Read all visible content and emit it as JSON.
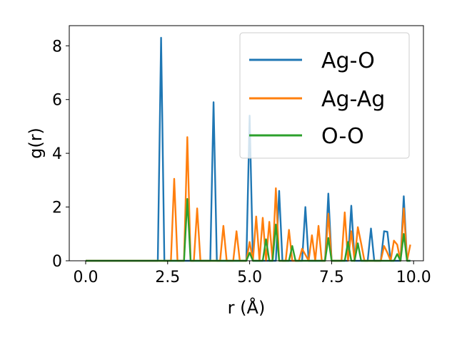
{
  "chart_data": {
    "type": "line",
    "xlabel": "r (Å)",
    "ylabel": "g(r)",
    "xlim": [
      -0.5,
      10.3
    ],
    "ylim": [
      0,
      8.75
    ],
    "xticks": [
      0.0,
      2.5,
      5.0,
      7.5,
      10.0
    ],
    "xtick_labels": [
      "0.0",
      "2.5",
      "5.0",
      "7.5",
      "10.0"
    ],
    "yticks": [
      0,
      2,
      4,
      6,
      8
    ],
    "ytick_labels": [
      "0",
      "2",
      "4",
      "6",
      "8"
    ],
    "grid": false,
    "legend_placement": "top-right",
    "series": [
      {
        "name": "Ag-O",
        "color": "#1f77b4",
        "x": [
          0.0,
          2.2,
          2.3,
          2.4,
          3.8,
          3.9,
          4.0,
          4.9,
          5.0,
          5.1,
          5.8,
          5.9,
          6.0,
          6.6,
          6.7,
          6.8,
          7.3,
          7.4,
          7.5,
          8.0,
          8.1,
          8.2,
          8.6,
          8.7,
          8.8,
          9.0,
          9.1,
          9.2,
          9.3,
          9.6,
          9.7,
          9.8,
          9.9
        ],
        "y": [
          0.0,
          0.0,
          8.3,
          0.0,
          0.0,
          5.9,
          0.0,
          0.0,
          5.4,
          0.0,
          0.0,
          2.6,
          0.0,
          0.0,
          2.0,
          0.0,
          0.0,
          2.5,
          0.0,
          0.0,
          2.05,
          0.0,
          0.0,
          1.2,
          0.0,
          0.0,
          1.1,
          1.08,
          0.0,
          0.0,
          2.4,
          0.0,
          0.0
        ]
      },
      {
        "name": "Ag-Ag",
        "color": "#ff7f0e",
        "x": [
          0.0,
          2.6,
          2.7,
          2.8,
          3.0,
          3.1,
          3.2,
          3.3,
          3.4,
          3.5,
          4.1,
          4.2,
          4.3,
          4.5,
          4.6,
          4.7,
          4.9,
          5.0,
          5.1,
          5.2,
          5.3,
          5.4,
          5.5,
          5.6,
          5.7,
          5.8,
          5.9,
          6.1,
          6.2,
          6.3,
          6.5,
          6.6,
          6.8,
          6.9,
          7.0,
          7.1,
          7.2,
          7.3,
          7.4,
          7.5,
          7.8,
          7.9,
          8.0,
          8.1,
          8.2,
          8.3,
          8.4,
          8.5,
          8.9,
          9.0,
          9.1,
          9.2,
          9.3,
          9.4,
          9.5,
          9.6,
          9.7,
          9.8,
          9.9
        ],
        "y": [
          0.0,
          0.0,
          3.05,
          0.0,
          0.0,
          4.6,
          0.0,
          0.0,
          1.95,
          0.0,
          0.0,
          1.3,
          0.0,
          0.0,
          1.1,
          0.0,
          0.0,
          0.7,
          0.0,
          1.65,
          0.0,
          1.6,
          0.0,
          1.45,
          0.0,
          2.7,
          0.0,
          0.0,
          1.15,
          0.0,
          0.0,
          0.45,
          0.0,
          0.95,
          0.0,
          1.3,
          0.0,
          0.0,
          1.75,
          0.0,
          0.0,
          1.8,
          0.0,
          1.1,
          0.0,
          1.25,
          0.65,
          0.0,
          0.0,
          0.0,
          0.55,
          0.3,
          0.0,
          0.75,
          0.6,
          0.0,
          1.95,
          0.0,
          0.6
        ]
      },
      {
        "name": "O-O",
        "color": "#2ca02c",
        "x": [
          0.0,
          3.0,
          3.1,
          3.2,
          4.9,
          5.0,
          5.1,
          5.4,
          5.5,
          5.6,
          5.7,
          5.8,
          5.9,
          6.2,
          6.3,
          6.4,
          7.3,
          7.4,
          7.5,
          7.9,
          8.0,
          8.1,
          8.2,
          8.3,
          8.4,
          9.4,
          9.5,
          9.6,
          9.7,
          9.8,
          9.9
        ],
        "y": [
          0.0,
          0.0,
          2.3,
          0.0,
          0.0,
          0.3,
          0.0,
          0.0,
          0.8,
          0.0,
          0.0,
          1.35,
          0.0,
          0.0,
          0.55,
          0.0,
          0.0,
          0.85,
          0.0,
          0.0,
          0.7,
          0.0,
          0.0,
          0.65,
          0.0,
          0.0,
          0.25,
          0.0,
          1.0,
          0.0,
          0.0
        ]
      }
    ]
  }
}
